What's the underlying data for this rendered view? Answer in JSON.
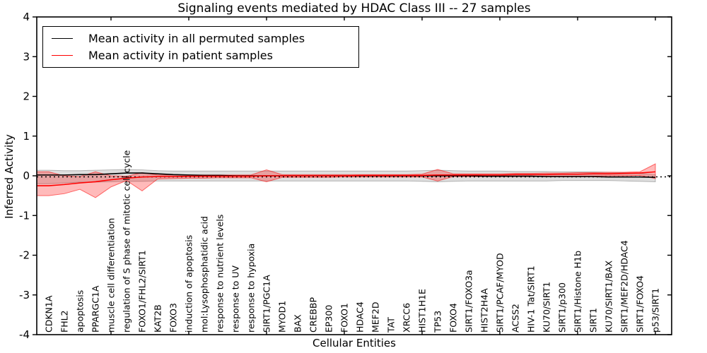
{
  "chart_data": {
    "type": "line",
    "title": "Signaling events mediated by HDAC Class III -- 27 samples",
    "xlabel": "Cellular Entities",
    "ylabel": "Inferred Activity",
    "ylim": [
      -4,
      4
    ],
    "yticks": [
      -4,
      -3,
      -2,
      -1,
      0,
      1,
      2,
      3,
      4
    ],
    "grid": false,
    "legend_position": "upper left",
    "categories": [
      "CDKN1A",
      "FHL2",
      "apoptosis",
      "PPARGC1A",
      "muscle cell differentiation",
      "regulation of S phase of mitotic cell cycle",
      "FOXO1/FHL2/SIRT1",
      "KAT2B",
      "FOXO3",
      "induction of apoptosis",
      "mol:Lysophosphatidic acid",
      "response to nutrient levels",
      "response to UV",
      "response to hypoxia",
      "SIRT1/PGC1A",
      "MYOD1",
      "BAX",
      "CREBBP",
      "EP300",
      "FOXO1",
      "HDAC4",
      "MEF2D",
      "TAT",
      "XRCC6",
      "HIST1H1E",
      "TP53",
      "FOXO4",
      "SIRT1/FOXO3a",
      "HIST2H4A",
      "SIRT1/PCAF/MYOD",
      "ACSS2",
      "HIV-1 Tat/SIRT1",
      "KU70/SIRT1",
      "SIRT1/p300",
      "SIRT1/Histone H1b",
      "SIRT1",
      "KU70/SIRT1/BAX",
      "SIRT1/MEF2D/HDAC4",
      "SIRT1/FOXO4",
      "p53/SIRT1"
    ],
    "series": [
      {
        "name": "Mean activity in all permuted samples",
        "color": "#000000",
        "values": [
          0.02,
          0.02,
          0.03,
          0.03,
          0.05,
          0.07,
          0.07,
          0.05,
          0.03,
          0.02,
          0.01,
          0.01,
          0.0,
          0.0,
          0.0,
          0.0,
          0.0,
          0.0,
          0.0,
          0.0,
          0.0,
          0.0,
          0.0,
          0.0,
          0.0,
          0.0,
          0.0,
          0.0,
          -0.01,
          -0.01,
          -0.01,
          -0.01,
          -0.02,
          -0.02,
          -0.02,
          -0.02,
          -0.03,
          -0.03,
          -0.03,
          -0.04
        ],
        "band_top": [
          0.14,
          0.13,
          0.13,
          0.14,
          0.15,
          0.16,
          0.15,
          0.13,
          0.12,
          0.12,
          0.12,
          0.12,
          0.12,
          0.12,
          0.12,
          0.12,
          0.12,
          0.12,
          0.12,
          0.12,
          0.12,
          0.12,
          0.12,
          0.12,
          0.13,
          0.14,
          0.13,
          0.12,
          0.12,
          0.12,
          0.11,
          0.11,
          0.11,
          0.1,
          0.1,
          0.1,
          0.09,
          0.08,
          0.06,
          0.03
        ],
        "band_bottom": [
          -0.2,
          -0.18,
          -0.16,
          -0.16,
          -0.15,
          -0.14,
          -0.14,
          -0.13,
          -0.13,
          -0.13,
          -0.13,
          -0.13,
          -0.13,
          -0.13,
          -0.13,
          -0.13,
          -0.13,
          -0.13,
          -0.13,
          -0.13,
          -0.13,
          -0.13,
          -0.13,
          -0.13,
          -0.14,
          -0.15,
          -0.14,
          -0.13,
          -0.13,
          -0.13,
          -0.13,
          -0.13,
          -0.13,
          -0.12,
          -0.12,
          -0.12,
          -0.12,
          -0.13,
          -0.14,
          -0.15
        ]
      },
      {
        "name": "Mean activity in patient samples",
        "color": "#ff0000",
        "values": [
          -0.25,
          -0.22,
          -0.18,
          -0.15,
          -0.1,
          -0.06,
          -0.03,
          -0.02,
          -0.02,
          -0.01,
          -0.01,
          -0.01,
          -0.01,
          -0.01,
          0.0,
          0.0,
          0.0,
          0.0,
          0.0,
          0.0,
          0.01,
          0.01,
          0.01,
          0.01,
          0.01,
          0.02,
          0.02,
          0.02,
          0.02,
          0.02,
          0.03,
          0.03,
          0.03,
          0.04,
          0.04,
          0.05,
          0.05,
          0.06,
          0.07,
          0.1
        ],
        "band_top": [
          0.1,
          0.0,
          -0.02,
          0.1,
          0.0,
          -0.01,
          0.08,
          0.02,
          0.02,
          0.02,
          0.02,
          0.02,
          0.02,
          0.02,
          0.15,
          0.03,
          0.03,
          0.03,
          0.03,
          0.03,
          0.03,
          0.03,
          0.03,
          0.03,
          0.04,
          0.16,
          0.05,
          0.05,
          0.05,
          0.05,
          0.06,
          0.06,
          0.07,
          0.07,
          0.08,
          0.08,
          0.09,
          0.09,
          0.1,
          0.3
        ],
        "band_bottom": [
          -0.5,
          -0.45,
          -0.34,
          -0.55,
          -0.28,
          -0.12,
          -0.38,
          -0.08,
          -0.07,
          -0.06,
          -0.06,
          -0.05,
          -0.05,
          -0.05,
          -0.15,
          -0.04,
          -0.04,
          -0.04,
          -0.04,
          -0.03,
          -0.03,
          -0.03,
          -0.03,
          -0.03,
          -0.03,
          -0.13,
          -0.02,
          -0.02,
          -0.02,
          -0.02,
          -0.02,
          -0.02,
          -0.01,
          -0.01,
          -0.01,
          -0.01,
          0.0,
          0.0,
          0.01,
          -0.07
        ]
      }
    ],
    "zero_line": 0,
    "colors": {
      "permuted_line": "#000000",
      "patient_line": "#ff0000",
      "permuted_band": "rgba(0,0,0,0.13)",
      "permuted_band_edge": "rgba(0,0,0,0.25)",
      "patient_band": "rgba(255,0,0,0.27)",
      "patient_band_edge": "rgba(255,0,0,0.55)",
      "axis": "#000000"
    }
  },
  "legend": {
    "entries": [
      {
        "label": "Mean activity in all permuted samples",
        "color": "#000000"
      },
      {
        "label": "Mean activity in patient samples",
        "color": "#ff0000"
      }
    ]
  }
}
